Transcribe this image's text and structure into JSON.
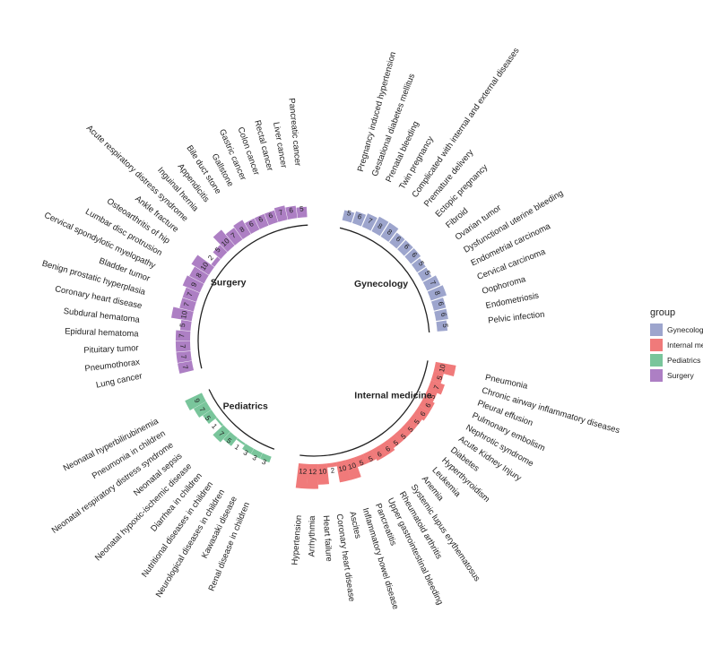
{
  "colors": {
    "Gynecology": "#9da5cd",
    "Internal medicine": "#f07a7a",
    "Pediatrics": "#79c59b",
    "Surgery": "#ad7fc4"
  },
  "legend": {
    "title": "group",
    "items": [
      "Gynecology",
      "Internal medicine",
      "Pediatrics",
      "Surgery"
    ]
  },
  "chart_data": {
    "type": "bar",
    "polar": true,
    "groups": [
      {
        "name": "Gynecology",
        "categories": [
          "Pregnancy induced hypertension",
          "Gestational diabetes mellitus",
          "Prenatal bleeding",
          "Twin pregnancy",
          "Complicated with internal and external diseases",
          "Premature delivery",
          "Ectopic pregnancy",
          "Fibroid",
          "Ovarian tumor",
          "Dysfunctional uterine bleeding",
          "Endometrial carcinoma",
          "Cervical carcinoma",
          "Oophoroma",
          "Endometriosis",
          "Pelvic infection"
        ],
        "values": [
          5,
          6,
          7,
          8,
          8,
          6,
          6,
          6,
          5,
          5,
          7,
          8,
          6,
          6,
          5
        ]
      },
      {
        "name": "Internal medicine",
        "categories": [
          "Pneumonia",
          "Chronic airway inflammatory diseases",
          "Pleural effusion",
          "Pulmonary embolism",
          "Nephrotic syndrome",
          "Acute Kidney Injury",
          "Diabetes",
          "Hyperthyroidism",
          "Leukemia",
          "Anemia",
          "Systemic lupus erythematosus",
          "Rheumatoid arthritis",
          "Upper gastrointestinal bleeding",
          "Pancreatitis",
          "Inflammatory bowel disease",
          "Ascites",
          "Coronary heart disease",
          "Heart failure",
          "Arrhythmia",
          "Hypertension"
        ],
        "values": [
          10,
          5,
          7,
          5,
          6,
          6,
          5,
          5,
          5,
          5,
          6,
          6,
          5,
          5,
          10,
          10,
          2,
          10,
          12,
          12
        ]
      },
      {
        "name": "Pediatrics",
        "categories": [
          "Renal disease in children",
          "Kawasaki disease",
          "Neurological diseases in children",
          "Nutritional diseases in children",
          "Diarrhea in children",
          "Neonatal hypoxic-ischemic disease",
          "Neonatal sepsis",
          "Neonatal respiratory distress syndrome",
          "Pneumonia in children",
          "Neonatal hyperbilirubinemia"
        ],
        "values": [
          3,
          3,
          3,
          1,
          5,
          7,
          1,
          5,
          7,
          9
        ]
      },
      {
        "name": "Surgery",
        "categories": [
          "Lung cancer",
          "Pneumothorax",
          "Pituitary tumor",
          "Epidural hematoma",
          "Subdural hematoma",
          "Coronary heart disease",
          "Benign prostatic hyperplasia",
          "Bladder tumor",
          "Cervical spondylotic myelopathy",
          "Lumbar disc protrusion",
          "Osteoarthritis of hip",
          "Ankle fracture",
          "Acute respiratory distress syndrome",
          "Inguinal hernia",
          "Appendicitis",
          "Bile duct stone",
          "Gallstone",
          "Gastric cancer",
          "Colon cancer",
          "Rectal cancer",
          "Liver cancer",
          "Pancreatic cancer"
        ],
        "values": [
          7,
          7,
          7,
          7,
          5,
          10,
          7,
          7,
          9,
          8,
          10,
          2,
          5,
          10,
          7,
          8,
          6,
          6,
          6,
          7,
          6,
          5
        ]
      }
    ],
    "legend_position": "right"
  }
}
